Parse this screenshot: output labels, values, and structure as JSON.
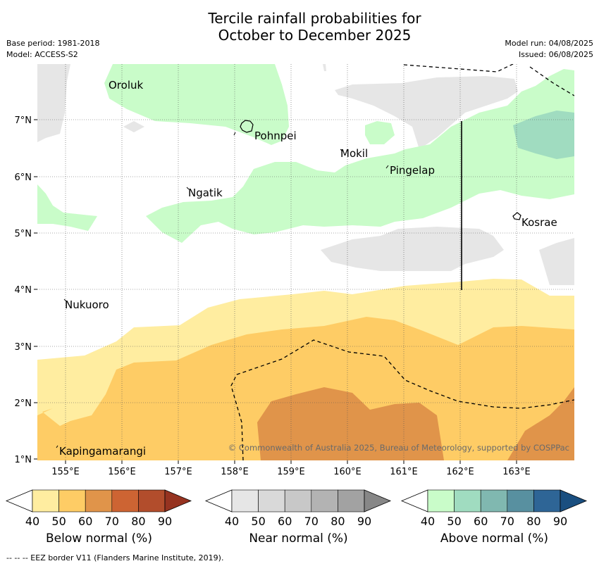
{
  "title_line1": "Tercile rainfall probabilities for",
  "title_line2": "October to December 2025",
  "base_period": "Base period: 1981-2018",
  "model": "Model: ACCESS-S2",
  "model_run": "Model run: 04/08/2025",
  "issued": "Issued: 06/08/2025",
  "copyright": "© Commonwealth of Australia 2025, Bureau of Meteorology, supported by COSPPac",
  "lat_ticks": [
    "7°N",
    "6°N",
    "5°N",
    "4°N",
    "3°N",
    "2°N",
    "1°N"
  ],
  "lon_ticks": [
    "155°E",
    "156°E",
    "157°E",
    "158°E",
    "159°E",
    "160°E",
    "161°E",
    "162°E",
    "163°E"
  ],
  "places": {
    "oroluk": "Oroluk",
    "pohnpei": "Pohnpei",
    "mokil": "Mokil",
    "pingelap": "Pingelap",
    "ngatik": "Ngatik",
    "kosrae": "Kosrae",
    "nukuoro": "Nukuoro",
    "kapingamarangi": "Kapingamarangi"
  },
  "colorbars": {
    "below": {
      "title": "Below normal (%)",
      "ticks": [
        "40",
        "50",
        "60",
        "70",
        "80",
        "90"
      ],
      "colors": [
        "#ffeda0",
        "#fecc65",
        "#e0944a",
        "#cd6433",
        "#b24d2c",
        "#963320"
      ]
    },
    "near": {
      "title": "Near normal (%)",
      "ticks": [
        "40",
        "50",
        "60",
        "70",
        "80",
        "90"
      ],
      "colors": [
        "#e6e6e6",
        "#d9d9d9",
        "#c8c8c8",
        "#b3b3b3",
        "#a2a2a2",
        "#878787"
      ]
    },
    "above": {
      "title": "Above normal (%)",
      "ticks": [
        "40",
        "50",
        "60",
        "70",
        "80",
        "90"
      ],
      "colors": [
        "#c9fcc9",
        "#a0dcc0",
        "#80b8b0",
        "#5890a0",
        "#2e6596",
        "#1a4f80"
      ]
    }
  },
  "footnote": "--  --  -- EEZ border V11 (Flanders Marine Institute, 2019)."
}
